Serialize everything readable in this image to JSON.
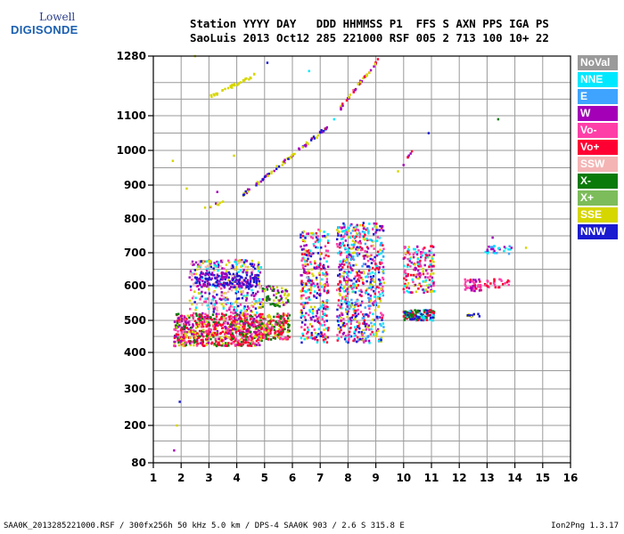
{
  "logo": {
    "line1": "Lowell",
    "line2": "DIGISONDE"
  },
  "header": {
    "line1": "Station YYYY DAY   DDD HHMMSS P1  FFS S AXN PPS IGA PS",
    "line2": "SaoLuis 2013 Oct12 285 221000 RSF 005 2 713 100 10+ 22"
  },
  "legend": [
    {
      "label": "NoVal",
      "color": "#9a9a9a"
    },
    {
      "label": "NNE",
      "color": "#00e8ff"
    },
    {
      "label": "E",
      "color": "#3fa4ff"
    },
    {
      "label": "W",
      "color": "#a300b8"
    },
    {
      "label": "Vo-",
      "color": "#ff3fa8"
    },
    {
      "label": "Vo+",
      "color": "#ff0033"
    },
    {
      "label": "SSW",
      "color": "#f4b4b4"
    },
    {
      "label": "X-",
      "color": "#0a7a0a"
    },
    {
      "label": "X+",
      "color": "#7cbc5a"
    },
    {
      "label": "SSE",
      "color": "#d6d600"
    },
    {
      "label": "NNW",
      "color": "#1a1ad0"
    }
  ],
  "chart_data": {
    "type": "scatter",
    "title": "",
    "xlabel": "",
    "ylabel": "",
    "xlim": [
      1,
      16
    ],
    "ylim": [
      80,
      1280
    ],
    "x_ticks": [
      1,
      2,
      3,
      4,
      5,
      6,
      7,
      8,
      9,
      10,
      11,
      12,
      13,
      14,
      15,
      16
    ],
    "y_ticks": [
      80,
      200,
      300,
      400,
      500,
      600,
      700,
      800,
      900,
      1000,
      1100,
      1280
    ],
    "y_scale": "ionogram-height",
    "grid": true,
    "series_note": "",
    "clusters": [
      {
        "xmin": 1.75,
        "xmax": 4.9,
        "ymin": 420,
        "ymax": 520,
        "n": 700,
        "colors": [
          "#ff0033",
          "#ff3fa8",
          "#a300b8",
          "#ff0033",
          "#0a7a0a",
          "#d6d600"
        ]
      },
      {
        "xmin": 2.3,
        "xmax": 4.9,
        "ymin": 520,
        "ymax": 680,
        "n": 380,
        "colors": [
          "#a300b8",
          "#ff3fa8",
          "#1a1ad0",
          "#d6d600",
          "#00e8ff",
          "#f4b4b4"
        ]
      },
      {
        "xmin": 2.5,
        "xmax": 4.8,
        "ymin": 595,
        "ymax": 640,
        "n": 160,
        "colors": [
          "#a300b8",
          "#1a1ad0"
        ]
      },
      {
        "xmin": 4.8,
        "xmax": 5.9,
        "ymin": 440,
        "ymax": 520,
        "n": 200,
        "colors": [
          "#ff0033",
          "#ff3fa8",
          "#d6d600",
          "#0a7a0a"
        ]
      },
      {
        "xmin": 4.9,
        "xmax": 5.9,
        "ymin": 540,
        "ymax": 600,
        "n": 70,
        "colors": [
          "#d6d600",
          "#0a7a0a",
          "#a300b8"
        ]
      },
      {
        "xmin": 6.3,
        "xmax": 7.3,
        "ymin": 430,
        "ymax": 770,
        "n": 330,
        "colors": [
          "#ff3fa8",
          "#a300b8",
          "#d6d600",
          "#1a1ad0",
          "#00e8ff",
          "#ff0033"
        ]
      },
      {
        "xmin": 7.6,
        "xmax": 9.3,
        "ymin": 430,
        "ymax": 790,
        "n": 650,
        "colors": [
          "#a300b8",
          "#d6d600",
          "#ff3fa8",
          "#1a1ad0",
          "#00e8ff",
          "#ff0033",
          "#3fa4ff"
        ]
      },
      {
        "xmin": 10.0,
        "xmax": 11.1,
        "ymin": 500,
        "ymax": 530,
        "n": 130,
        "colors": [
          "#1a1ad0",
          "#00e8ff",
          "#ff0033",
          "#0a7a0a"
        ]
      },
      {
        "xmin": 10.0,
        "xmax": 11.1,
        "ymin": 580,
        "ymax": 720,
        "n": 170,
        "colors": [
          "#d6d600",
          "#ff3fa8",
          "#a300b8",
          "#ff0033",
          "#00e8ff"
        ]
      },
      {
        "xmin": 12.2,
        "xmax": 12.8,
        "ymin": 585,
        "ymax": 620,
        "n": 45,
        "colors": [
          "#ff3fa8",
          "#ff0033",
          "#a300b8"
        ]
      },
      {
        "xmin": 12.9,
        "xmax": 13.8,
        "ymin": 595,
        "ymax": 620,
        "n": 25,
        "colors": [
          "#ff3fa8",
          "#ff0033"
        ]
      },
      {
        "xmin": 12.9,
        "xmax": 13.9,
        "ymin": 695,
        "ymax": 720,
        "n": 30,
        "colors": [
          "#00e8ff",
          "#3fa4ff",
          "#a300b8"
        ]
      },
      {
        "xmin": 12.2,
        "xmax": 12.8,
        "ymin": 510,
        "ymax": 520,
        "n": 12,
        "colors": [
          "#1a1ad0",
          "#d6d600"
        ]
      }
    ],
    "traces": [
      {
        "x1": 4.2,
        "y1": 870,
        "x2": 7.3,
        "y2": 1070,
        "n": 80,
        "colors": [
          "#d6d600",
          "#1a1ad0",
          "#a300b8"
        ]
      },
      {
        "x1": 3.1,
        "y1": 1160,
        "x2": 4.7,
        "y2": 1225,
        "n": 35,
        "colors": [
          "#d6d600"
        ]
      },
      {
        "x1": 7.7,
        "y1": 1120,
        "x2": 9.2,
        "y2": 1280,
        "n": 45,
        "colors": [
          "#ff0033",
          "#a300b8",
          "#d6d600"
        ]
      },
      {
        "x1": 2.5,
        "y1": 825,
        "x2": 3.6,
        "y2": 850,
        "n": 8,
        "colors": [
          "#d6d600",
          "#a300b8"
        ]
      },
      {
        "x1": 10.0,
        "y1": 960,
        "x2": 10.3,
        "y2": 1000,
        "n": 6,
        "colors": [
          "#a300b8",
          "#ff0033"
        ]
      }
    ],
    "scattered_points": [
      {
        "x": 1.75,
        "y": 120,
        "c": "#a300b8"
      },
      {
        "x": 1.85,
        "y": 200,
        "c": "#d6d600"
      },
      {
        "x": 1.95,
        "y": 265,
        "c": "#1a1ad0"
      },
      {
        "x": 1.7,
        "y": 970,
        "c": "#d6d600"
      },
      {
        "x": 2.5,
        "y": 1280,
        "c": "#d6d600"
      },
      {
        "x": 5.1,
        "y": 1260,
        "c": "#1a1ad0"
      },
      {
        "x": 6.6,
        "y": 1235,
        "c": "#00e8ff"
      },
      {
        "x": 7.5,
        "y": 1090,
        "c": "#00e8ff"
      },
      {
        "x": 10.9,
        "y": 1050,
        "c": "#1a1ad0"
      },
      {
        "x": 13.4,
        "y": 1090,
        "c": "#0a7a0a"
      },
      {
        "x": 2.2,
        "y": 890,
        "c": "#d6d600"
      },
      {
        "x": 3.3,
        "y": 880,
        "c": "#a300b8"
      },
      {
        "x": 3.9,
        "y": 985,
        "c": "#d6d600"
      },
      {
        "x": 9.8,
        "y": 940,
        "c": "#d6d600"
      },
      {
        "x": 14.4,
        "y": 715,
        "c": "#d6d600"
      },
      {
        "x": 13.2,
        "y": 745,
        "c": "#a300b8"
      }
    ]
  },
  "footer": {
    "left": "SAA0K_2013285221000.RSF / 300fx256h 50 kHz 5.0 km / DPS-4 SAA0K 903 / 2.6 S 315.8 E",
    "right": "Ion2Png 1.3.17"
  }
}
